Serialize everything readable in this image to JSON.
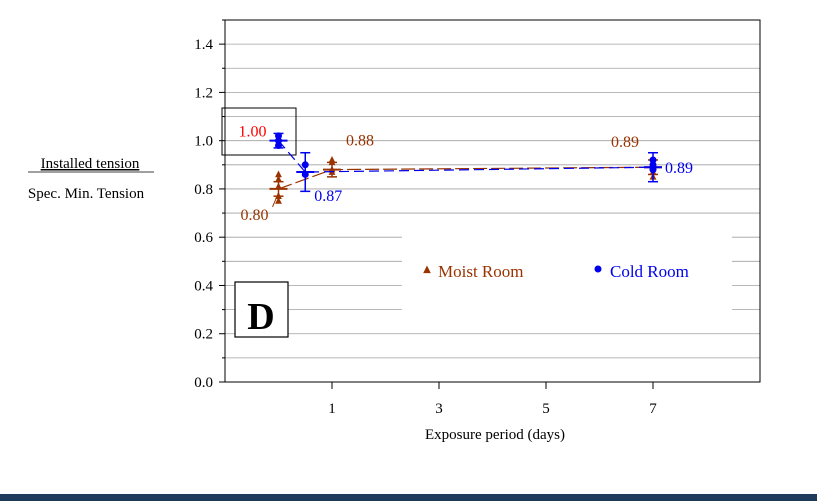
{
  "chart_data": {
    "type": "scatter",
    "x_ticks": [
      1,
      3,
      5,
      7
    ],
    "xlim": [
      -1,
      9
    ],
    "xlabel": "Exposure period (days)",
    "y_ticks": [
      "0.0",
      "0.2",
      "0.4",
      "0.6",
      "0.8",
      "1.0",
      "1.2",
      "1.4"
    ],
    "ylim": [
      0,
      1.5
    ],
    "ylabel_top": "Installed tension",
    "ylabel_bottom": "Spec. Min. Tension",
    "grid": true,
    "panel_label": "D",
    "legend_position": "center-right",
    "series": [
      {
        "name": "Moist Room",
        "color": "#993300",
        "marker": "triangle",
        "points": [
          {
            "x": 0,
            "y": 0.75
          },
          {
            "x": 0,
            "y": 0.77
          },
          {
            "x": 0,
            "y": 0.81
          },
          {
            "x": 0,
            "y": 0.84
          },
          {
            "x": 0,
            "y": 0.86
          },
          {
            "x": 1,
            "y": 0.87
          },
          {
            "x": 1,
            "y": 0.88
          },
          {
            "x": 1,
            "y": 0.91
          },
          {
            "x": 1,
            "y": 0.92
          },
          {
            "x": 7,
            "y": 0.85
          },
          {
            "x": 7,
            "y": 0.87
          },
          {
            "x": 7,
            "y": 0.89
          },
          {
            "x": 7,
            "y": 0.91
          }
        ],
        "means": [
          {
            "x": 0,
            "y": 0.8,
            "err": 0.03
          },
          {
            "x": 1,
            "y": 0.88,
            "err": 0.03
          },
          {
            "x": 7,
            "y": 0.89,
            "err": 0.03
          }
        ],
        "data_labels": [
          "0.80",
          "0.88",
          "0.89"
        ]
      },
      {
        "name": "Cold Room",
        "color": "#0000ee",
        "marker": "circle",
        "points": [
          {
            "x": 0,
            "y": 0.98
          },
          {
            "x": 0,
            "y": 1.0
          },
          {
            "x": 0,
            "y": 1.02
          },
          {
            "x": 0.5,
            "y": 0.86
          },
          {
            "x": 0.5,
            "y": 0.9
          },
          {
            "x": 7,
            "y": 0.88
          },
          {
            "x": 7,
            "y": 0.9
          },
          {
            "x": 7,
            "y": 0.92
          }
        ],
        "means": [
          {
            "x": 0,
            "y": 1.0,
            "err": 0.03
          },
          {
            "x": 0.5,
            "y": 0.87,
            "err": 0.08
          },
          {
            "x": 7,
            "y": 0.89,
            "err": 0.06
          }
        ],
        "data_labels": [
          "1.00",
          "0.87",
          "0.89"
        ],
        "first_label_color": "#ff0000"
      }
    ]
  }
}
